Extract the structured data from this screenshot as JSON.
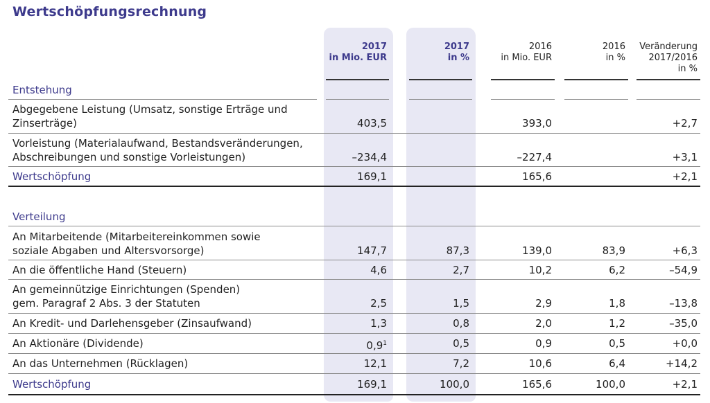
{
  "title": "Wertschöpfungsrechnung",
  "columns": [
    {
      "year": "2017",
      "unit": "in Mio. EUR"
    },
    {
      "year": "2017",
      "unit": "in %"
    },
    {
      "year": "2016",
      "unit": "in Mio. EUR"
    },
    {
      "year": "2016",
      "unit": "in %"
    },
    {
      "l1": "Veränderung",
      "l2": "2017/2016",
      "l3": "in %"
    }
  ],
  "sections": {
    "entstehung": {
      "heading": "Entstehung",
      "rows": [
        {
          "l1": "Abgegebene Leistung (Umsatz, sonstige Erträge und",
          "l2": "Zinserträge)",
          "v": [
            "403,5",
            "",
            "393,0",
            "",
            "+2,7"
          ]
        },
        {
          "l1": "Vorleistung (Materialaufwand, Bestandsveränderungen,",
          "l2": "Abschreibungen und sonstige Vorleistungen)",
          "v": [
            "–234,4",
            "",
            "–227,4",
            "",
            "+3,1"
          ]
        }
      ],
      "total": {
        "label": "Wertschöpfung",
        "v": [
          "169,1",
          "",
          "165,6",
          "",
          "+2,1"
        ]
      }
    },
    "verteilung": {
      "heading": "Verteilung",
      "rows": [
        {
          "l1": "An Mitarbeitende (Mitarbeitereinkommen sowie",
          "l2": "soziale Abgaben und Altersvorsorge)",
          "v": [
            "147,7",
            "87,3",
            "139,0",
            "83,9",
            "+6,3"
          ]
        },
        {
          "l1": "An die öffentliche Hand (Steuern)",
          "v": [
            "4,6",
            "2,7",
            "10,2",
            "6,2",
            "–54,9"
          ]
        },
        {
          "l1": "An gemeinnützige Einrichtungen (Spenden)",
          "l2": "gem. Paragraf 2 Abs. 3 der Statuten",
          "v": [
            "2,5",
            "1,5",
            "2,9",
            "1,8",
            "–13,8"
          ]
        },
        {
          "l1": "An Kredit- und Darlehensgeber (Zinsaufwand)",
          "v": [
            "1,3",
            "0,8",
            "2,0",
            "1,2",
            "–35,0"
          ]
        },
        {
          "l1": "An Aktionäre (Dividende)",
          "v": [
            "0,9",
            "0,5",
            "0,9",
            "0,5",
            "+0,0"
          ],
          "footnote": "1"
        },
        {
          "l1": "An das Unternehmen (Rücklagen)",
          "v": [
            "12,1",
            "7,2",
            "10,6",
            "6,4",
            "+14,2"
          ]
        }
      ],
      "total": {
        "label": "Wertschöpfung",
        "v": [
          "169,1",
          "100,0",
          "165,6",
          "100,0",
          "+2,1"
        ]
      }
    }
  },
  "colors": {
    "accent": "#3d3a8c",
    "highlight": "#e8e8f4"
  }
}
